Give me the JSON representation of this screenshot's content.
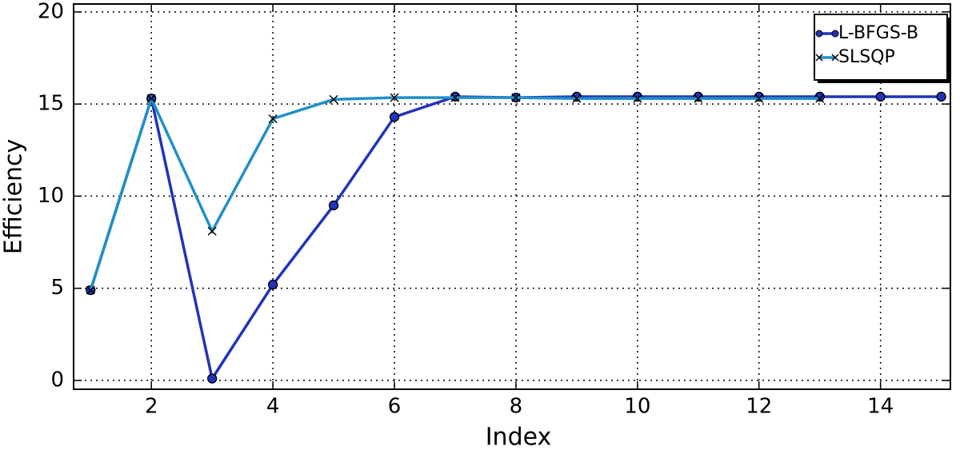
{
  "chart_data": {
    "type": "line",
    "xlabel": "Index",
    "ylabel": "Efficiency",
    "xlim": [
      0.72,
      15.15
    ],
    "ylim": [
      -0.48,
      20.43
    ],
    "xticks": [
      2,
      4,
      6,
      8,
      10,
      12,
      14
    ],
    "yticks": [
      0,
      5,
      10,
      15,
      20
    ],
    "grid": true,
    "legend": "upper right",
    "series": [
      {
        "name": "L-BFGS-B",
        "color": "#2233bb",
        "marker": "o",
        "x": [
          1,
          2,
          3,
          4,
          5,
          6,
          7,
          8,
          9,
          10,
          11,
          12,
          13,
          14,
          15
        ],
        "values": [
          4.9,
          15.3,
          0.1,
          5.2,
          9.5,
          14.3,
          15.4,
          15.35,
          15.4,
          15.4,
          15.4,
          15.4,
          15.4,
          15.4,
          15.4
        ]
      },
      {
        "name": "SLSQP",
        "color": "#2090c8",
        "marker": "x",
        "x": [
          1,
          2,
          3,
          4,
          5,
          6,
          7,
          8,
          9,
          10,
          11,
          12,
          13
        ],
        "values": [
          4.9,
          15.3,
          8.1,
          14.2,
          15.25,
          15.35,
          15.35,
          15.35,
          15.3,
          15.3,
          15.3,
          15.3,
          15.3
        ]
      }
    ]
  }
}
